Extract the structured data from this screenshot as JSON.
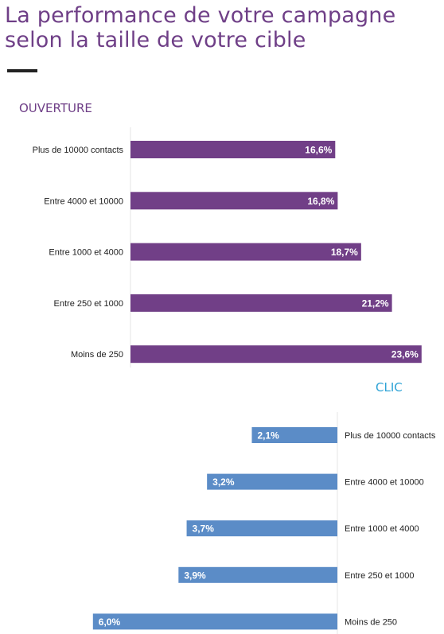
{
  "header": {
    "title_line1": "La performance de votre campagne",
    "title_line2": "selon la taille de votre cible"
  },
  "colors": {
    "title": "#6f3f87",
    "open_bar": "#713f87",
    "click_bar": "#5b8cc7",
    "clic_heading": "#2ea3d6"
  },
  "chart_data": [
    {
      "type": "bar",
      "orientation": "horizontal",
      "title": "OUVERTURE",
      "categories": [
        "Plus de 10000 contacts",
        "Entre 4000 et 10000",
        "Entre 1000 et 4000",
        "Entre 250 et 1000",
        "Moins de 250"
      ],
      "values": [
        16.6,
        16.8,
        18.7,
        21.2,
        23.6
      ],
      "value_labels": [
        "16,6%",
        "16,8%",
        "18,7%",
        "21,2%",
        "23,6%"
      ],
      "xlim": [
        0,
        25
      ],
      "grid": false,
      "bar_direction": "left-to-right",
      "color": "#713f87"
    },
    {
      "type": "bar",
      "orientation": "horizontal",
      "title": "CLIC",
      "categories": [
        "Plus de 10000 contacts",
        "Entre 4000 et 10000",
        "Entre 1000 et 4000",
        "Entre 250 et 1000",
        "Moins de 250"
      ],
      "values": [
        2.1,
        3.2,
        3.7,
        3.9,
        6.0
      ],
      "value_labels": [
        "2,1%",
        "3,2%",
        "3,7%",
        "3,9%",
        "6,0%"
      ],
      "xlim": [
        0,
        7
      ],
      "grid": false,
      "bar_direction": "right-to-left",
      "color": "#5b8cc7"
    }
  ]
}
